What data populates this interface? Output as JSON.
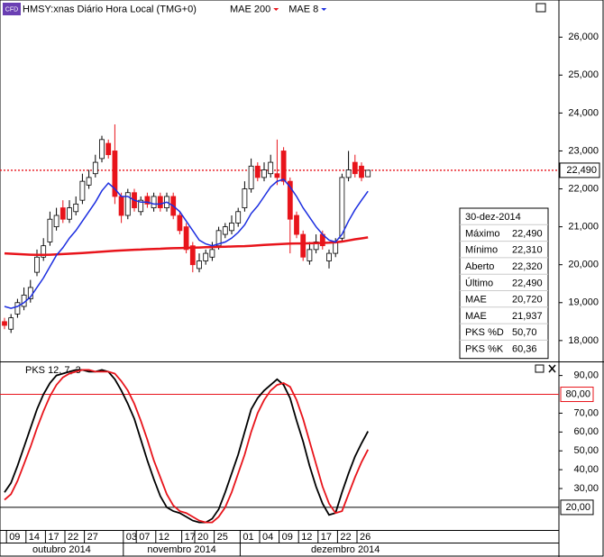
{
  "chart_data": [
    {
      "type": "candlestick",
      "badge": "CFD",
      "title": "HMSY:xnas Diário Hora Local (TMG+0)",
      "categories": [
        null,
        "09",
        null,
        null,
        "14",
        null,
        null,
        "17",
        null,
        null,
        "22",
        null,
        null,
        "27",
        null,
        null,
        null,
        null,
        null,
        "03",
        null,
        "07",
        null,
        null,
        "12",
        null,
        null,
        null,
        "17",
        null,
        "20",
        null,
        null,
        "25",
        null,
        null,
        null,
        "01",
        null,
        null,
        "04",
        null,
        null,
        "09",
        null,
        null,
        "12",
        null,
        null,
        "17",
        null,
        null,
        "22",
        null,
        null,
        "26",
        null
      ],
      "x_groups": [
        "outubro 2014",
        "novembro 2014",
        "dezembro 2014"
      ],
      "open": [
        18500,
        18300,
        18700,
        18900,
        19100,
        19800,
        20200,
        20600,
        21000,
        21500,
        21200,
        21400,
        21700,
        22100,
        22400,
        22800,
        23200,
        23000,
        21800,
        21300,
        21900,
        21400,
        21800,
        21500,
        21800,
        21500,
        21800,
        21300,
        21000,
        20500,
        19900,
        20100,
        20200,
        20500,
        20800,
        20900,
        21100,
        21500,
        22000,
        22600,
        22300,
        22400,
        22400,
        23000,
        22200,
        21300,
        20800,
        20100,
        20400,
        20800,
        20100,
        20300,
        20700,
        22300,
        22700,
        22600,
        22320
      ],
      "high": [
        18600,
        18700,
        19100,
        19400,
        19600,
        20400,
        20700,
        21400,
        21500,
        21700,
        21700,
        21800,
        22400,
        22500,
        22900,
        23400,
        23300,
        23700,
        21900,
        22000,
        22000,
        21800,
        21900,
        21900,
        21900,
        21900,
        21900,
        21400,
        21100,
        20600,
        20300,
        20400,
        20600,
        21000,
        21100,
        21300,
        21500,
        22200,
        22800,
        22700,
        22700,
        22900,
        23300,
        23100,
        22300,
        21400,
        20900,
        20600,
        20800,
        20900,
        20400,
        20700,
        22400,
        23000,
        22900,
        22700,
        22490
      ],
      "low": [
        18300,
        18200,
        18600,
        18800,
        19000,
        19700,
        20100,
        20500,
        20900,
        21100,
        21100,
        21300,
        21600,
        22000,
        22300,
        22700,
        22800,
        21600,
        21100,
        21200,
        21400,
        21300,
        21500,
        21400,
        21400,
        21400,
        21200,
        20800,
        20300,
        19800,
        19800,
        20000,
        20100,
        20400,
        20700,
        20800,
        21000,
        21400,
        21900,
        22200,
        22200,
        22300,
        22100,
        22100,
        20300,
        20700,
        20100,
        20000,
        20300,
        20400,
        19900,
        20200,
        20600,
        22200,
        22300,
        22200,
        22310
      ],
      "close": [
        18400,
        18600,
        19000,
        19200,
        19400,
        20200,
        20500,
        21200,
        21300,
        21200,
        21500,
        21600,
        22200,
        22300,
        22700,
        23300,
        22900,
        21800,
        21300,
        21900,
        21500,
        21700,
        21600,
        21800,
        21500,
        21800,
        21300,
        20900,
        20400,
        20000,
        20100,
        20300,
        20400,
        20900,
        21000,
        21100,
        21400,
        22000,
        22600,
        22300,
        22500,
        22700,
        22300,
        22200,
        21200,
        20800,
        20200,
        20400,
        20600,
        20500,
        20300,
        20600,
        22300,
        22500,
        22400,
        22300,
        22490
      ],
      "up_color": "#ffffff",
      "down_color": "#e8141b",
      "series": [
        {
          "name": "MAE 200",
          "color": "#e8141b",
          "values": [
            20300,
            20290,
            20280,
            20270,
            20265,
            20260,
            20260,
            20265,
            20270,
            20280,
            20290,
            20300,
            20310,
            20320,
            20330,
            20345,
            20355,
            20365,
            20375,
            20385,
            20395,
            20400,
            20410,
            20415,
            20420,
            20430,
            20435,
            20440,
            20445,
            20450,
            20455,
            20460,
            20465,
            20470,
            20475,
            20480,
            20485,
            20490,
            20500,
            20510,
            20520,
            20530,
            20540,
            20550,
            20555,
            20560,
            20560,
            20565,
            20570,
            20575,
            20580,
            20590,
            20610,
            20640,
            20670,
            20695,
            20720
          ]
        },
        {
          "name": "MAE 8",
          "color": "#1c2ee0",
          "values": [
            18900,
            18850,
            18900,
            19000,
            19150,
            19400,
            19650,
            19950,
            20250,
            20450,
            20700,
            20900,
            21150,
            21400,
            21650,
            21950,
            22150,
            22000,
            21800,
            21800,
            21700,
            21650,
            21650,
            21600,
            21600,
            21650,
            21550,
            21400,
            21150,
            20900,
            20650,
            20550,
            20500,
            20550,
            20600,
            20700,
            20850,
            21050,
            21350,
            21550,
            21800,
            22050,
            22200,
            22250,
            22050,
            21800,
            21500,
            21250,
            21000,
            20800,
            20650,
            20600,
            20800,
            21150,
            21450,
            21700,
            21937
          ]
        }
      ],
      "last_price": {
        "value": 22490,
        "label": "22,490"
      },
      "ylim": [
        17450,
        26980
      ],
      "yticks": [
        {
          "value": 26000,
          "label": "26,000"
        },
        {
          "value": 25000,
          "label": "25,000"
        },
        {
          "value": 24000,
          "label": "24,000"
        },
        {
          "value": 23000,
          "label": "23,000"
        },
        {
          "value": 22000,
          "label": "22,000"
        },
        {
          "value": 21000,
          "label": "21,000"
        },
        {
          "value": 20000,
          "label": "20,000"
        },
        {
          "value": 19000,
          "label": "19,000"
        },
        {
          "value": 18000,
          "label": "18,000"
        }
      ],
      "info_box": {
        "date": "30-dez-2014",
        "rows": [
          {
            "label": "Máximo",
            "value": "22,490",
            "color": "#000000"
          },
          {
            "label": "Mínimo",
            "value": "22,310",
            "color": "#000000"
          },
          {
            "label": "Aberto",
            "value": "22,320",
            "color": "#000000"
          },
          {
            "label": "Último",
            "value": "22,490",
            "color": "#000000"
          },
          {
            "label": "MAE",
            "value": "20,720",
            "color": "#e8141b"
          },
          {
            "label": "MAE",
            "value": "21,937",
            "color": "#1c2ee0"
          },
          {
            "label": "PKS %D",
            "value": "50,70",
            "color": "#e8141b"
          },
          {
            "label": "PKS %K",
            "value": "60,36",
            "color": "#000000"
          }
        ]
      }
    },
    {
      "type": "line",
      "title": "PKS 12, 7, 3",
      "series": [
        {
          "name": "PKS %K",
          "color": "#000000",
          "values": [
            28,
            33,
            42,
            52,
            62,
            72,
            80,
            86,
            90,
            91,
            92,
            93,
            93,
            92,
            92,
            93,
            92,
            88,
            82,
            75,
            67,
            56,
            45,
            35,
            26,
            20,
            18,
            17,
            15,
            13,
            12,
            12,
            14,
            19,
            28,
            38,
            48,
            60,
            72,
            78,
            82,
            85,
            88,
            85,
            78,
            66,
            55,
            42,
            31,
            22,
            16,
            17,
            28,
            38,
            47,
            54,
            60.36
          ]
        },
        {
          "name": "PKS %D",
          "color": "#e8141b",
          "values": [
            24,
            27,
            34,
            43,
            52,
            62,
            71,
            79,
            85,
            89,
            91,
            92,
            93,
            93,
            92,
            92,
            92,
            91,
            87,
            82,
            75,
            66,
            56,
            45,
            36,
            27,
            21,
            18,
            17,
            15,
            13,
            12,
            12,
            15,
            20,
            28,
            38,
            48,
            60,
            70,
            77,
            82,
            85,
            86,
            84,
            77,
            67,
            55,
            43,
            31,
            22,
            17,
            18,
            27,
            36,
            44,
            50.7
          ]
        }
      ],
      "hlines": [
        {
          "value": 80,
          "label": "80,00",
          "color": "#e8141b"
        },
        {
          "value": 20,
          "label": "20,00",
          "color": "#000000"
        }
      ],
      "ylim": [
        8,
        97
      ],
      "yticks": [
        {
          "value": 90,
          "label": "90,00"
        },
        {
          "value": 70,
          "label": "70,00"
        },
        {
          "value": 60,
          "label": "60,00"
        },
        {
          "value": 50,
          "label": "50,00"
        },
        {
          "value": 40,
          "label": "40,00"
        },
        {
          "value": 30,
          "label": "30,00"
        }
      ]
    }
  ]
}
